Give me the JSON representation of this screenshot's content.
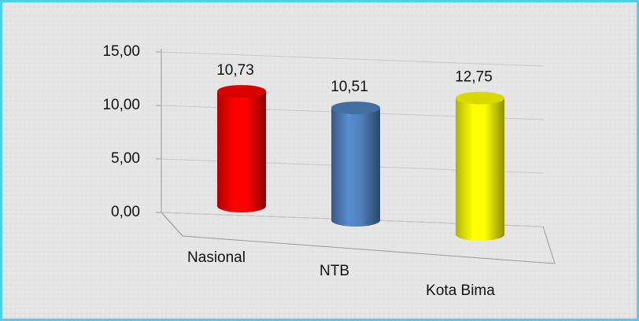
{
  "chart_data": {
    "type": "bar",
    "categories": [
      "Nasional",
      "NTB",
      "Kota Bima"
    ],
    "series": [
      {
        "values": [
          10.73,
          10.51,
          12.75
        ],
        "value_labels": [
          "10,73",
          "10,51",
          "12,75"
        ],
        "colors": [
          "#ff0000",
          "#4f81bd",
          "#ffff00"
        ]
      }
    ],
    "ylim": [
      0,
      15
    ],
    "yticks": [
      {
        "value": 0,
        "label": "0,00"
      },
      {
        "value": 5,
        "label": "5,00"
      },
      {
        "value": 10,
        "label": "10,00"
      },
      {
        "value": 15,
        "label": "15,00"
      }
    ],
    "grid": true
  }
}
